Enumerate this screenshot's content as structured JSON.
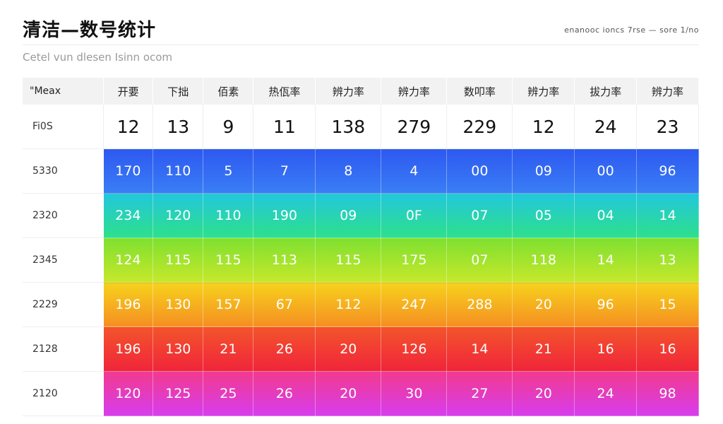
{
  "header": {
    "title": "清洁—数号统计",
    "subtitle": "Cetel vun dlesen Isinn ocom",
    "meta": "enanooc ioncs 7rse — sore 1/no"
  },
  "table": {
    "corner_label": "\"Meax",
    "columns": [
      "开要",
      "下拙",
      "佰素",
      "热佤率",
      "辨力率",
      "辨力率",
      "数叩率",
      "辨力率",
      "拔力率",
      "辨力率"
    ],
    "total_row": {
      "label": "Fi0S",
      "values": [
        "12",
        "13",
        "9",
        "11",
        "138",
        "279",
        "229",
        "12",
        "24",
        "23"
      ]
    },
    "rows": [
      {
        "label": "5330",
        "values": [
          "170",
          "110",
          "5",
          "7",
          "8",
          "4",
          "00",
          "09",
          "00",
          "96"
        ]
      },
      {
        "label": "2320",
        "values": [
          "234",
          "120",
          "110",
          "190",
          "09",
          "0F",
          "07",
          "05",
          "04",
          "14"
        ]
      },
      {
        "label": "2345",
        "values": [
          "124",
          "115",
          "115",
          "113",
          "115",
          "175",
          "07",
          "118",
          "14",
          "13"
        ]
      },
      {
        "label": "2229",
        "values": [
          "196",
          "130",
          "157",
          "67",
          "112",
          "247",
          "288",
          "20",
          "96",
          "15"
        ]
      },
      {
        "label": "2128",
        "values": [
          "196",
          "130",
          "21",
          "26",
          "20",
          "126",
          "14",
          "21",
          "16",
          "16"
        ]
      },
      {
        "label": "2120",
        "values": [
          "120",
          "125",
          "25",
          "26",
          "20",
          "30",
          "27",
          "20",
          "24",
          "98"
        ]
      }
    ]
  }
}
